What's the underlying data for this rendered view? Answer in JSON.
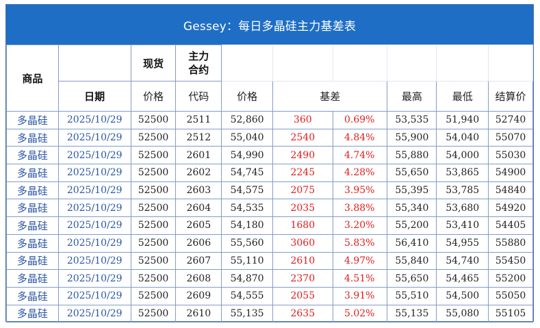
{
  "title": "Gessey：每日多晶硅主力基差表",
  "headers": {
    "product": "商品",
    "spot": "现货",
    "main_contract": "主力\n合约",
    "date": "日期",
    "spot_price": "价格",
    "code": "代码",
    "price": "价格",
    "basis": "基差",
    "high": "最高",
    "low": "最低",
    "settle": "结算价"
  },
  "colors": {
    "title_bg": "#1f6ec5",
    "basis_text": "#e21b1b",
    "link_text": "#2a55a3"
  },
  "rows": [
    {
      "product": "多晶硅",
      "date": "2025/10/29",
      "spot": "52500",
      "code": "2511",
      "price": "52,860",
      "basis": "360",
      "pct": "0.69%",
      "high": "53,535",
      "low": "51,940",
      "settle": "52740"
    },
    {
      "product": "多晶硅",
      "date": "2025/10/29",
      "spot": "52500",
      "code": "2512",
      "price": "55,040",
      "basis": "2540",
      "pct": "4.84%",
      "high": "55,900",
      "low": "54,040",
      "settle": "55070"
    },
    {
      "product": "多晶硅",
      "date": "2025/10/29",
      "spot": "52500",
      "code": "2601",
      "price": "54,990",
      "basis": "2490",
      "pct": "4.74%",
      "high": "55,880",
      "low": "54,000",
      "settle": "55030"
    },
    {
      "product": "多晶硅",
      "date": "2025/10/29",
      "spot": "52500",
      "code": "2602",
      "price": "54,745",
      "basis": "2245",
      "pct": "4.28%",
      "high": "55,650",
      "low": "53,865",
      "settle": "54900"
    },
    {
      "product": "多晶硅",
      "date": "2025/10/29",
      "spot": "52500",
      "code": "2603",
      "price": "54,575",
      "basis": "2075",
      "pct": "3.95%",
      "high": "55,395",
      "low": "53,785",
      "settle": "54840"
    },
    {
      "product": "多晶硅",
      "date": "2025/10/29",
      "spot": "52500",
      "code": "2604",
      "price": "54,535",
      "basis": "2035",
      "pct": "3.88%",
      "high": "55,340",
      "low": "53,680",
      "settle": "54920"
    },
    {
      "product": "多晶硅",
      "date": "2025/10/29",
      "spot": "52500",
      "code": "2605",
      "price": "54,180",
      "basis": "1680",
      "pct": "3.20%",
      "high": "55,200",
      "low": "53,410",
      "settle": "54405"
    },
    {
      "product": "多晶硅",
      "date": "2025/10/29",
      "spot": "52500",
      "code": "2606",
      "price": "55,560",
      "basis": "3060",
      "pct": "5.83%",
      "high": "56,410",
      "low": "54,955",
      "settle": "55880"
    },
    {
      "product": "多晶硅",
      "date": "2025/10/29",
      "spot": "52500",
      "code": "2607",
      "price": "55,110",
      "basis": "2610",
      "pct": "4.97%",
      "high": "55,840",
      "low": "54,740",
      "settle": "55450"
    },
    {
      "product": "多晶硅",
      "date": "2025/10/29",
      "spot": "52500",
      "code": "2608",
      "price": "54,870",
      "basis": "2370",
      "pct": "4.51%",
      "high": "55,650",
      "low": "54,465",
      "settle": "55200"
    },
    {
      "product": "多晶硅",
      "date": "2025/10/29",
      "spot": "52500",
      "code": "2609",
      "price": "54,555",
      "basis": "2055",
      "pct": "3.91%",
      "high": "55,510",
      "low": "54,500",
      "settle": "55050"
    },
    {
      "product": "多晶硅",
      "date": "2025/10/29",
      "spot": "52500",
      "code": "2610",
      "price": "55,135",
      "basis": "2635",
      "pct": "5.02%",
      "high": "55,135",
      "low": "55,080",
      "settle": "55105"
    }
  ]
}
